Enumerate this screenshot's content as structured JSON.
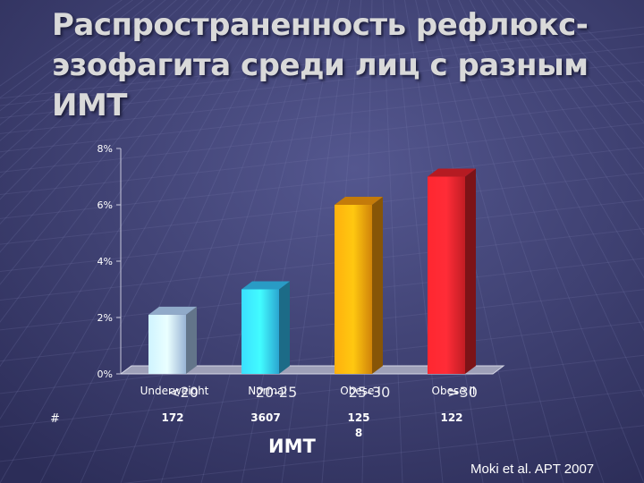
{
  "slide": {
    "title": "Распространенность рефлюкс-эзофагита среди лиц с разным ИМТ",
    "hash_mark": "#",
    "citation": "Moki et al. APT 2007"
  },
  "chart_data": {
    "type": "bar",
    "xlabel": "ИМТ",
    "ylabel": "",
    "ylim": [
      0,
      8
    ],
    "y_ticks": [
      "0%",
      "2%",
      "4%",
      "6%",
      "8%"
    ],
    "grid": false,
    "categories": [
      "Underweight",
      "Normal",
      "Obese I",
      "Obese II"
    ],
    "overlay_labels": [
      "<20",
      "20-25",
      "25-30",
      ">30"
    ],
    "counts": [
      "172",
      "3607",
      "125\n8",
      "122"
    ],
    "values": [
      2.1,
      3.0,
      6.0,
      7.0
    ],
    "bar_colors": [
      "#b4d4fb",
      "#33c2f6",
      "#f59a0c",
      "#e2222a"
    ]
  }
}
